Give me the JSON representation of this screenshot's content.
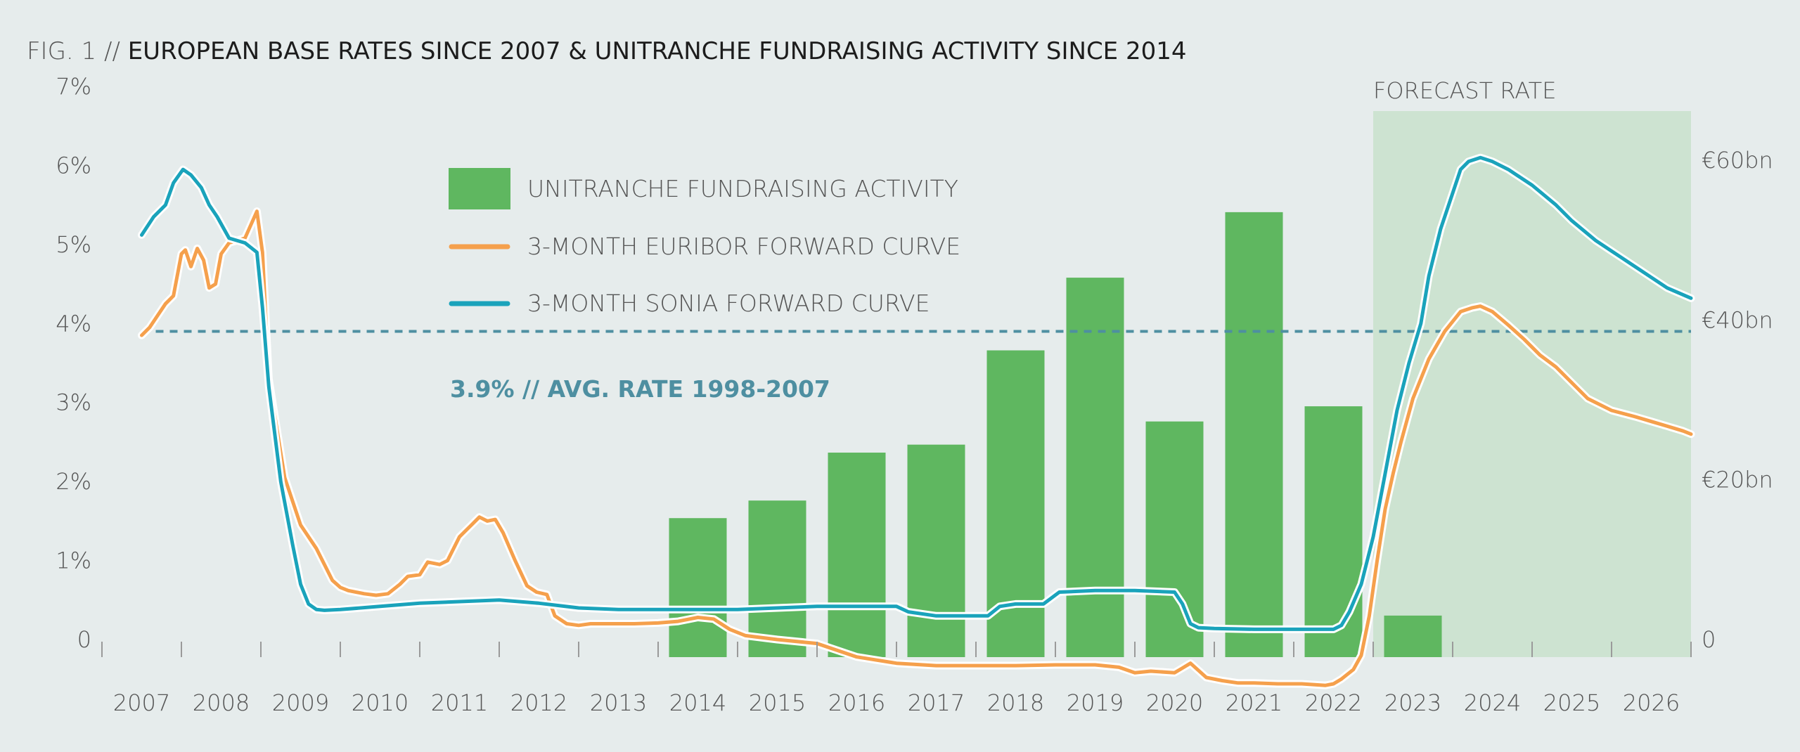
{
  "chart_data": {
    "type": "bar+line",
    "title_prefix": "FIG. 1 // ",
    "title": "EUROPEAN BASE RATES SINCE 2007 & UNITRANCHE FUNDRAISING ACTIVITY SINCE 2014",
    "x_ticks": [
      "2007",
      "2008",
      "2009",
      "2010",
      "2011",
      "2012",
      "2013",
      "2014",
      "2015",
      "2016",
      "2017",
      "2018",
      "2019",
      "2020",
      "2021",
      "2022",
      "2023",
      "2024",
      "2025",
      "2026"
    ],
    "x_range": [
      2006.5,
      2026.5
    ],
    "y_left": {
      "ticks": [
        "0",
        "1%",
        "2%",
        "3%",
        "4%",
        "5%",
        "6%",
        "7%"
      ],
      "range": [
        0,
        7
      ],
      "unit": "%"
    },
    "y_right": {
      "ticks": [
        "0",
        "€20bn",
        "€40bn",
        "€60bn"
      ],
      "range": [
        0,
        60
      ],
      "unit": "€bn"
    },
    "forecast": {
      "label": "FORECAST RATE",
      "from": 2022.5,
      "to": 2026.5,
      "color": "#cde3d1"
    },
    "reference_line": {
      "label": "3.9% // AVG. RATE 1998-2007",
      "value": 3.9,
      "color": "#4e8fa1"
    },
    "colors": {
      "bars": "#5fb760",
      "euribor": "#f5a04c",
      "sonia": "#1aa3bb"
    },
    "legend": [
      {
        "label": "UNITRANCHE FUNDRAISING ACTIVITY",
        "type": "bar"
      },
      {
        "label": "3-MONTH EURIBOR FORWARD CURVE",
        "type": "line"
      },
      {
        "label": "3-MONTH SONIA FORWARD CURVE",
        "type": "line"
      }
    ],
    "bars": {
      "name": "UNITRANCHE FUNDRAISING ACTIVITY",
      "categories": [
        "2014",
        "2015",
        "2016",
        "2017",
        "2018",
        "2019",
        "2020",
        "2021",
        "2022",
        "2023"
      ],
      "values": [
        15.2,
        17.4,
        23.4,
        24.4,
        36.2,
        45.3,
        27.3,
        53.5,
        29.2,
        3.0
      ]
    },
    "series": [
      {
        "name": "3-MONTH EURIBOR FORWARD CURVE",
        "x": [
          2007.0,
          2007.1,
          2007.2,
          2007.3,
          2007.4,
          2007.5,
          2007.55,
          2007.62,
          2007.7,
          2007.78,
          2007.85,
          2007.93,
          2008.0,
          2008.1,
          2008.2,
          2008.3,
          2008.45,
          2008.52,
          2008.6,
          2008.8,
          2008.9,
          2009.0,
          2009.1,
          2009.2,
          2009.3,
          2009.4,
          2009.5,
          2009.6,
          2009.8,
          2009.95,
          2010.1,
          2010.25,
          2010.35,
          2010.5,
          2010.6,
          2010.75,
          2010.85,
          2011.0,
          2011.15,
          2011.25,
          2011.35,
          2011.45,
          2011.55,
          2011.7,
          2011.85,
          2011.97,
          2012.1,
          2012.2,
          2012.35,
          2012.5,
          2012.65,
          2012.8,
          2013.0,
          2013.2,
          2013.5,
          2013.75,
          2014.0,
          2014.2,
          2014.4,
          2014.6,
          2015.0,
          2015.5,
          2016.0,
          2016.5,
          2017.0,
          2017.5,
          2018.0,
          2018.5,
          2019.0,
          2019.3,
          2019.5,
          2019.7,
          2020.0,
          2020.1,
          2020.2,
          2020.4,
          2020.6,
          2020.8,
          2021.0,
          2021.3,
          2021.6,
          2021.9,
          2022.0,
          2022.1,
          2022.25,
          2022.35,
          2022.45,
          2022.55,
          2022.65,
          2022.75,
          2022.85,
          2023.0,
          2023.2,
          2023.4,
          2023.6,
          2023.75,
          2023.85,
          2024.0,
          2024.2,
          2024.4,
          2024.6,
          2024.8,
          2025.0,
          2025.2,
          2025.5,
          2025.8,
          2026.0,
          2026.2,
          2026.4,
          2026.5
        ],
        "y": [
          3.85,
          3.95,
          4.1,
          4.25,
          4.35,
          4.88,
          4.93,
          4.72,
          4.95,
          4.8,
          4.45,
          4.5,
          4.88,
          5.02,
          5.05,
          5.08,
          5.42,
          4.9,
          3.3,
          2.05,
          1.75,
          1.45,
          1.3,
          1.15,
          0.95,
          0.75,
          0.66,
          0.62,
          0.58,
          0.56,
          0.58,
          0.7,
          0.8,
          0.82,
          0.98,
          0.95,
          1.0,
          1.3,
          1.45,
          1.55,
          1.5,
          1.52,
          1.35,
          1.0,
          0.68,
          0.6,
          0.57,
          0.3,
          0.2,
          0.18,
          0.2,
          0.2,
          0.2,
          0.2,
          0.21,
          0.23,
          0.28,
          0.26,
          0.13,
          0.05,
          0.0,
          -0.05,
          -0.22,
          -0.3,
          -0.33,
          -0.33,
          -0.33,
          -0.32,
          -0.32,
          -0.35,
          -0.42,
          -0.4,
          -0.42,
          -0.36,
          -0.3,
          -0.48,
          -0.52,
          -0.55,
          -0.55,
          -0.56,
          -0.56,
          -0.58,
          -0.56,
          -0.5,
          -0.38,
          -0.2,
          0.3,
          1.0,
          1.65,
          2.1,
          2.5,
          3.05,
          3.55,
          3.9,
          4.15,
          4.2,
          4.22,
          4.15,
          3.98,
          3.8,
          3.6,
          3.45,
          3.25,
          3.05,
          2.9,
          2.82,
          2.76,
          2.7,
          2.64,
          2.6
        ]
      },
      {
        "name": "3-MONTH SONIA FORWARD CURVE",
        "x": [
          2007.0,
          2007.15,
          2007.3,
          2007.4,
          2007.52,
          2007.62,
          2007.75,
          2007.85,
          2007.95,
          2008.1,
          2008.3,
          2008.45,
          2008.52,
          2008.6,
          2008.75,
          2008.9,
          2009.0,
          2009.1,
          2009.2,
          2009.3,
          2009.5,
          2010.0,
          2010.5,
          2011.0,
          2011.5,
          2012.0,
          2012.5,
          2013.0,
          2013.5,
          2014.0,
          2014.5,
          2015.0,
          2015.5,
          2016.0,
          2016.5,
          2016.65,
          2017.0,
          2017.5,
          2017.65,
          2017.8,
          2018.0,
          2018.35,
          2018.55,
          2019.0,
          2019.5,
          2020.0,
          2020.1,
          2020.2,
          2020.3,
          2020.5,
          2021.0,
          2021.5,
          2022.0,
          2022.1,
          2022.2,
          2022.35,
          2022.5,
          2022.65,
          2022.8,
          2022.95,
          2023.1,
          2023.2,
          2023.35,
          2023.5,
          2023.6,
          2023.7,
          2023.85,
          2024.0,
          2024.2,
          2024.5,
          2024.8,
          2025.0,
          2025.3,
          2025.6,
          2025.9,
          2026.2,
          2026.5
        ],
        "y": [
          5.12,
          5.35,
          5.5,
          5.78,
          5.95,
          5.88,
          5.72,
          5.5,
          5.35,
          5.08,
          5.02,
          4.9,
          4.2,
          3.2,
          2.0,
          1.2,
          0.7,
          0.45,
          0.38,
          0.37,
          0.38,
          0.42,
          0.46,
          0.48,
          0.5,
          0.46,
          0.4,
          0.38,
          0.38,
          0.38,
          0.38,
          0.4,
          0.42,
          0.42,
          0.42,
          0.35,
          0.3,
          0.3,
          0.3,
          0.42,
          0.45,
          0.45,
          0.6,
          0.62,
          0.62,
          0.6,
          0.45,
          0.2,
          0.15,
          0.14,
          0.13,
          0.13,
          0.13,
          0.18,
          0.35,
          0.7,
          1.3,
          2.1,
          2.9,
          3.5,
          4.0,
          4.6,
          5.2,
          5.65,
          5.95,
          6.05,
          6.1,
          6.05,
          5.95,
          5.75,
          5.5,
          5.3,
          5.05,
          4.85,
          4.65,
          4.45,
          4.32
        ]
      }
    ]
  }
}
